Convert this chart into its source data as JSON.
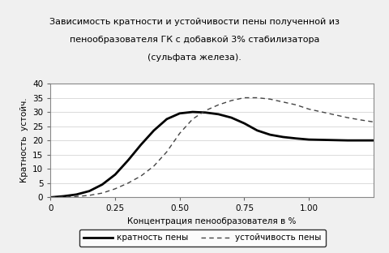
{
  "title_line1": "Зависимость кратности и устойчивости пены полученной из",
  "title_line2": "пенообразователя ГК с добавкой 3% стабилизатора",
  "title_line3": "(сульфата железа).",
  "xlabel": "Концентрация пенообразователя в %",
  "ylabel": "Кратность  устойч.",
  "xlim": [
    0,
    1.25
  ],
  "ylim": [
    0,
    40
  ],
  "xticks": [
    0,
    0.25,
    0.5,
    0.75,
    1.0
  ],
  "yticks": [
    0,
    5,
    10,
    15,
    20,
    25,
    30,
    35,
    40
  ],
  "legend_labels": [
    "кратность пены",
    "устойчивость пены"
  ],
  "bg_color": "#f0f0f0",
  "plot_bg_color": "#ffffff",
  "line1_color": "#000000",
  "line2_color": "#444444",
  "solid_x": [
    0,
    0.05,
    0.1,
    0.15,
    0.2,
    0.25,
    0.3,
    0.35,
    0.4,
    0.45,
    0.5,
    0.55,
    0.6,
    0.65,
    0.7,
    0.75,
    0.8,
    0.85,
    0.9,
    0.95,
    1.0,
    1.05,
    1.1,
    1.15,
    1.2,
    1.25
  ],
  "solid_y": [
    0,
    0.4,
    1.0,
    2.2,
    4.5,
    8.0,
    13.0,
    18.5,
    23.5,
    27.5,
    29.5,
    30.0,
    29.8,
    29.2,
    28.0,
    26.0,
    23.5,
    22.0,
    21.2,
    20.7,
    20.3,
    20.2,
    20.1,
    20.0,
    20.0,
    20.0
  ],
  "dashed_x": [
    0,
    0.05,
    0.1,
    0.15,
    0.2,
    0.25,
    0.3,
    0.35,
    0.4,
    0.45,
    0.5,
    0.55,
    0.6,
    0.65,
    0.7,
    0.75,
    0.8,
    0.85,
    0.9,
    0.95,
    1.0,
    1.05,
    1.1,
    1.15,
    1.2,
    1.25
  ],
  "dashed_y": [
    0,
    0.1,
    0.3,
    0.7,
    1.5,
    3.0,
    5.0,
    7.5,
    11.0,
    16.0,
    22.5,
    27.5,
    30.5,
    32.5,
    34.0,
    35.0,
    35.0,
    34.5,
    33.5,
    32.5,
    31.0,
    30.0,
    29.0,
    28.0,
    27.2,
    26.5
  ],
  "title_fontsize": 8,
  "axis_label_fontsize": 7.5,
  "tick_fontsize": 7.5,
  "legend_fontsize": 7.5
}
